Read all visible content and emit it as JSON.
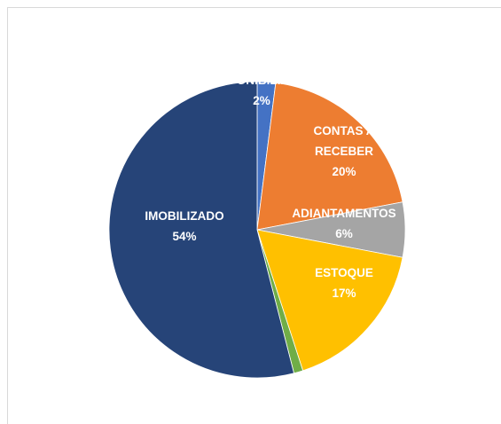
{
  "chart_data": {
    "type": "pie",
    "categories": [
      "DISPONIBILIDADE",
      "CONTAS A RECEBER",
      "ADIANTAMENTOS",
      "ESTOQUE",
      null,
      "IMOBILIZADO"
    ],
    "values": [
      2,
      20,
      6,
      17,
      1,
      54
    ],
    "value_labels": [
      "2%",
      "20%",
      "6%",
      "17%",
      null,
      "54%"
    ],
    "colors": [
      "#4472c4",
      "#ed7d31",
      "#a5a5a5",
      "#ffc000",
      "#70ad47",
      "#264478"
    ]
  }
}
